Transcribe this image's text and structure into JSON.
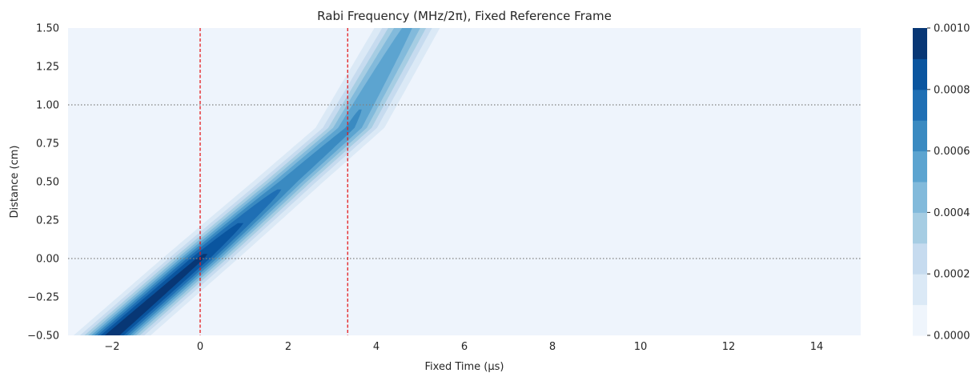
{
  "chart_data": {
    "type": "contour",
    "title": "Rabi Frequency (MHz/2π), Fixed Reference Frame",
    "xlabel": "Fixed Time (µs)",
    "ylabel": "Distance (cm)",
    "xlim": [
      -3,
      15
    ],
    "ylim": [
      -0.5,
      1.5
    ],
    "xticks": [
      "−2",
      "0",
      "2",
      "4",
      "6",
      "8",
      "10",
      "12",
      "14"
    ],
    "yticks": [
      "−0.50",
      "−0.25",
      "0.00",
      "0.25",
      "0.50",
      "0.75",
      "1.00",
      "1.25",
      "1.50"
    ],
    "colorbar": {
      "range": [
        0,
        0.001
      ],
      "ticks": [
        "0.0000",
        "0.0002",
        "0.0004",
        "0.0006",
        "0.0008",
        "0.0010"
      ],
      "levels": 10,
      "colormap": "Blues"
    },
    "pulse_band": {
      "description_points": [
        {
          "t": -2.0,
          "z": -0.5,
          "peak": 0.00098
        },
        {
          "t": 0.0,
          "z": 0.0,
          "peak": 0.00092
        },
        {
          "t": 2.0,
          "z": 0.5,
          "peak": 0.00068
        },
        {
          "t": 3.4,
          "z": 0.85,
          "peak": 0.00062
        },
        {
          "t": 4.7,
          "z": 1.5,
          "peak": 0.00052
        }
      ],
      "width_us": 0.9
    },
    "vlines": [
      {
        "x": 0.0,
        "color": "#e41a1c",
        "style": "dashed"
      },
      {
        "x": 3.35,
        "color": "#e41a1c",
        "style": "dashed"
      }
    ],
    "hlines": [
      {
        "y": 0.0,
        "color": "#808080",
        "style": "dotted"
      },
      {
        "y": 1.0,
        "color": "#808080",
        "style": "dotted"
      }
    ]
  }
}
